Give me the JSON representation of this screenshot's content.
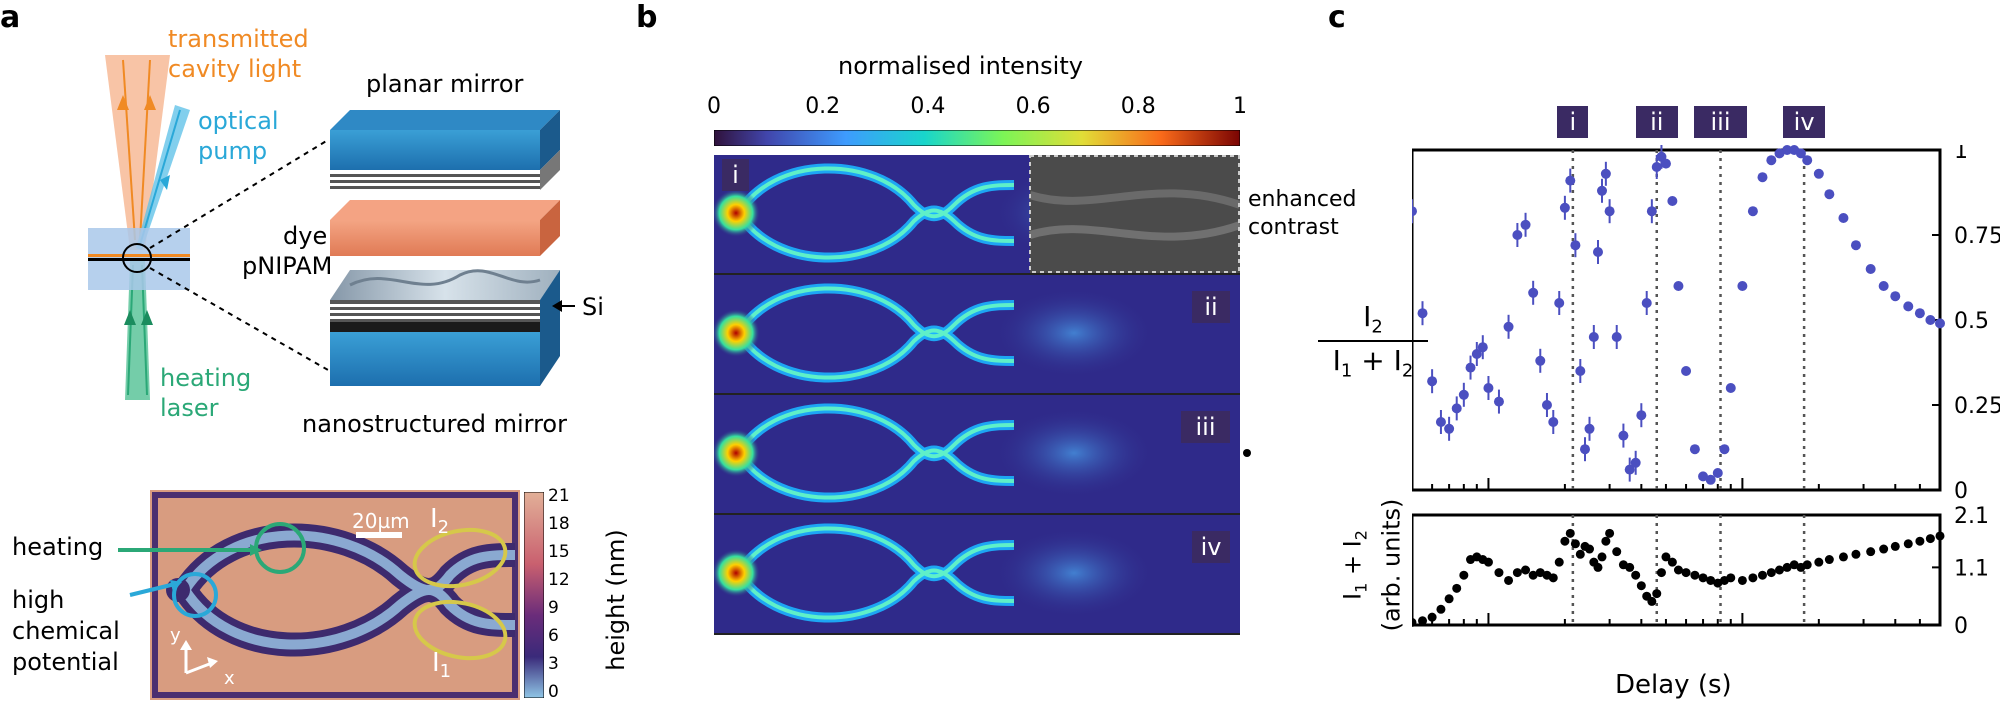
{
  "panel_labels": {
    "a": "a",
    "b": "b",
    "c": "c"
  },
  "panel_a": {
    "beam_transmitted": "transmitted cavity light",
    "beam_pump": "optical pump",
    "beam_heating": "heating laser",
    "layer_top": "planar mirror",
    "layer_dye": "dye",
    "layer_pnipam": "pNIPAM",
    "layer_si": "Si",
    "layer_bottom": "nanostructured mirror",
    "arrow_heating": "heating",
    "arrow_chem": "high chemical potential",
    "scale_bar": "20µm",
    "port_i2": "I",
    "port_i2_sub": "2",
    "port_i1": "I",
    "port_i1_sub": "1",
    "axis_y": "y",
    "axis_x": "x",
    "colorbar_label": "height (nm)",
    "colorbar_ticks": [
      "21",
      "18",
      "15",
      "12",
      "9",
      "6",
      "3",
      "0"
    ],
    "colors": {
      "orange": "#f08a24",
      "cyan": "#2aa8d8",
      "green": "#2ba877",
      "yellow": "#d6c84a"
    }
  },
  "panel_b": {
    "colorbar_title": "normalised intensity",
    "colorbar_ticks": [
      "0",
      "0.2",
      "0.4",
      "0.6",
      "0.8",
      "1"
    ],
    "enhanced_label": "enhanced contrast",
    "frames": [
      "i",
      "ii",
      "iii",
      "iv"
    ]
  },
  "panel_c": {
    "markers": [
      "i",
      "ii",
      "iii",
      "iv"
    ],
    "xlabel": "Delay (s)",
    "top_ylabel_num": "I",
    "top_ylabel_num_sub": "2",
    "top_ylabel_den_1": "I",
    "top_ylabel_den_1_sub": "1",
    "top_ylabel_den_plus": "+ I",
    "top_ylabel_den_2_sub": "2",
    "bottom_ylabel_1": "I",
    "bottom_ylabel_1_sub": "1",
    "bottom_ylabel_plus": "+ I",
    "bottom_ylabel_2_sub": "2",
    "bottom_ylabel_2": "(arb. units)"
  },
  "chart_data": [
    {
      "type": "scatter",
      "xlabel": "Delay (s)",
      "ylabel": "I2 / (I1 + I2)",
      "xscale": "log",
      "xlim": [
        0.5,
        60
      ],
      "ylim": [
        0,
        1
      ],
      "yticks": [
        "0",
        "0.25",
        "0.5",
        "0.75",
        "1"
      ],
      "xticks": [
        "1",
        "10"
      ],
      "color": "#4b4fc0",
      "vlines": [
        2.15,
        4.6,
        8.2,
        17.5
      ],
      "x": [
        0.5,
        0.55,
        0.6,
        0.65,
        0.7,
        0.75,
        0.8,
        0.85,
        0.9,
        0.95,
        1.0,
        1.1,
        1.2,
        1.3,
        1.4,
        1.5,
        1.6,
        1.7,
        1.8,
        1.9,
        2.0,
        2.1,
        2.2,
        2.3,
        2.4,
        2.5,
        2.6,
        2.7,
        2.8,
        2.9,
        3.0,
        3.2,
        3.4,
        3.6,
        3.8,
        4.0,
        4.2,
        4.4,
        4.6,
        4.8,
        5.0,
        5.3,
        5.6,
        6.0,
        6.5,
        7.0,
        7.5,
        8.0,
        8.5,
        9.0,
        10.0,
        11.0,
        12.0,
        13.0,
        14.0,
        15.0,
        16.0,
        17.0,
        18.0,
        20.0,
        22.0,
        25.0,
        28.0,
        32.0,
        36.0,
        40.0,
        45.0,
        50.0,
        55.0,
        60.0
      ],
      "y": [
        0.82,
        0.52,
        0.32,
        0.2,
        0.18,
        0.24,
        0.28,
        0.36,
        0.4,
        0.42,
        0.3,
        0.26,
        0.48,
        0.75,
        0.78,
        0.58,
        0.38,
        0.25,
        0.2,
        0.55,
        0.83,
        0.91,
        0.72,
        0.35,
        0.12,
        0.18,
        0.45,
        0.7,
        0.88,
        0.93,
        0.82,
        0.45,
        0.16,
        0.06,
        0.08,
        0.22,
        0.55,
        0.82,
        0.95,
        0.98,
        0.96,
        0.85,
        0.6,
        0.35,
        0.12,
        0.04,
        0.03,
        0.05,
        0.12,
        0.3,
        0.6,
        0.82,
        0.92,
        0.97,
        0.99,
        1.0,
        1.0,
        0.99,
        0.97,
        0.93,
        0.87,
        0.8,
        0.72,
        0.65,
        0.6,
        0.57,
        0.54,
        0.52,
        0.5,
        0.49
      ]
    },
    {
      "type": "scatter",
      "xlabel": "Delay (s)",
      "ylabel": "I1 + I2 (arb. units)",
      "xscale": "log",
      "xlim": [
        0.5,
        60
      ],
      "ylim": [
        0,
        2.1
      ],
      "yticks": [
        "0",
        "1.1",
        "2.1"
      ],
      "color": "#000000",
      "vlines": [
        2.15,
        4.6,
        8.2,
        17.5
      ],
      "x": [
        0.5,
        0.55,
        0.6,
        0.65,
        0.7,
        0.75,
        0.8,
        0.85,
        0.9,
        0.95,
        1.0,
        1.1,
        1.2,
        1.3,
        1.4,
        1.5,
        1.6,
        1.7,
        1.8,
        1.9,
        2.0,
        2.1,
        2.2,
        2.3,
        2.4,
        2.5,
        2.6,
        2.7,
        2.8,
        2.9,
        3.0,
        3.2,
        3.4,
        3.6,
        3.8,
        4.0,
        4.2,
        4.4,
        4.6,
        4.8,
        5.0,
        5.3,
        5.6,
        6.0,
        6.5,
        7.0,
        7.5,
        8.0,
        8.5,
        9.0,
        10.0,
        11.0,
        12.0,
        13.0,
        14.0,
        15.0,
        16.0,
        17.0,
        18.0,
        20.0,
        22.0,
        25.0,
        28.0,
        32.0,
        36.0,
        40.0,
        45.0,
        50.0,
        55.0,
        60.0
      ],
      "y": [
        0.05,
        0.08,
        0.15,
        0.3,
        0.5,
        0.7,
        0.95,
        1.25,
        1.3,
        1.25,
        1.2,
        1.0,
        0.85,
        1.0,
        1.05,
        0.95,
        1.0,
        0.95,
        0.9,
        1.2,
        1.6,
        1.75,
        1.55,
        1.35,
        1.5,
        1.45,
        1.2,
        1.1,
        1.3,
        1.6,
        1.75,
        1.4,
        1.15,
        1.1,
        0.95,
        0.75,
        0.55,
        0.45,
        0.6,
        1.0,
        1.3,
        1.2,
        1.05,
        1.0,
        0.95,
        0.9,
        0.85,
        0.8,
        0.85,
        0.9,
        0.85,
        0.9,
        0.95,
        1.0,
        1.05,
        1.1,
        1.15,
        1.1,
        1.15,
        1.2,
        1.25,
        1.3,
        1.35,
        1.4,
        1.45,
        1.5,
        1.55,
        1.6,
        1.65,
        1.7
      ]
    }
  ]
}
